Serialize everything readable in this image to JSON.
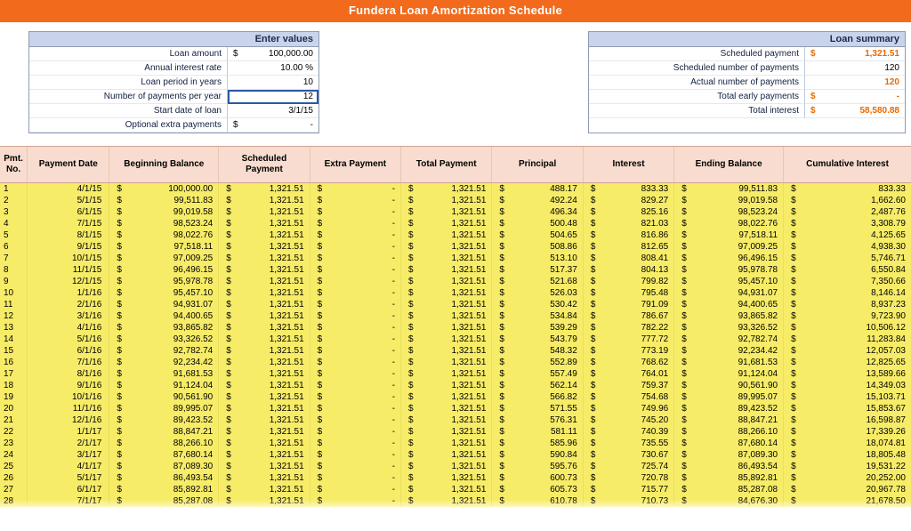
{
  "banner_title": "Fundera Loan Amortization Schedule",
  "enter_values": {
    "panel_title": "Enter values",
    "rows": [
      {
        "label": "Loan amount",
        "value": "100,000.00",
        "currency": true,
        "focus": false
      },
      {
        "label": "Annual interest rate",
        "value": "10.00  %",
        "currency": false,
        "focus": false
      },
      {
        "label": "Loan period in years",
        "value": "10",
        "currency": false,
        "focus": false
      },
      {
        "label": "Number of payments per year",
        "value": "12",
        "currency": false,
        "focus": true
      },
      {
        "label": "Start date of loan",
        "value": "3/1/15",
        "currency": false,
        "focus": false
      },
      {
        "label": "Optional extra payments",
        "value": "-",
        "currency": true,
        "focus": false
      }
    ]
  },
  "loan_summary": {
    "panel_title": "Loan summary",
    "rows": [
      {
        "label": "Scheduled payment",
        "value": "1,321.51",
        "currency": true,
        "orange": true
      },
      {
        "label": "Scheduled number of payments",
        "value": "120",
        "currency": false,
        "orange": false
      },
      {
        "label": "Actual number of payments",
        "value": "120",
        "currency": false,
        "orange": true
      },
      {
        "label": "Total early payments",
        "value": "-",
        "currency": true,
        "orange": true
      },
      {
        "label": "Total interest",
        "value": "58,580.88",
        "currency": true,
        "orange": true
      }
    ]
  },
  "schedule": {
    "columns": [
      "Pmt. No.",
      "Payment Date",
      "Beginning Balance",
      "Scheduled Payment",
      "Extra Payment",
      "Total Payment",
      "Principal",
      "Interest",
      "Ending Balance",
      "Cumulative Interest"
    ],
    "header_bg": "#f7dccf",
    "row_bg": "#f7ec68",
    "rows": [
      {
        "no": 1,
        "date": "4/1/15",
        "bb": "100,000.00",
        "sp": "1,321.51",
        "ep": "-",
        "tp": "1,321.51",
        "pr": "488.17",
        "int": "833.33",
        "eb": "99,511.83",
        "ci": "833.33"
      },
      {
        "no": 2,
        "date": "5/1/15",
        "bb": "99,511.83",
        "sp": "1,321.51",
        "ep": "-",
        "tp": "1,321.51",
        "pr": "492.24",
        "int": "829.27",
        "eb": "99,019.58",
        "ci": "1,662.60"
      },
      {
        "no": 3,
        "date": "6/1/15",
        "bb": "99,019.58",
        "sp": "1,321.51",
        "ep": "-",
        "tp": "1,321.51",
        "pr": "496.34",
        "int": "825.16",
        "eb": "98,523.24",
        "ci": "2,487.76"
      },
      {
        "no": 4,
        "date": "7/1/15",
        "bb": "98,523.24",
        "sp": "1,321.51",
        "ep": "-",
        "tp": "1,321.51",
        "pr": "500.48",
        "int": "821.03",
        "eb": "98,022.76",
        "ci": "3,308.79"
      },
      {
        "no": 5,
        "date": "8/1/15",
        "bb": "98,022.76",
        "sp": "1,321.51",
        "ep": "-",
        "tp": "1,321.51",
        "pr": "504.65",
        "int": "816.86",
        "eb": "97,518.11",
        "ci": "4,125.65"
      },
      {
        "no": 6,
        "date": "9/1/15",
        "bb": "97,518.11",
        "sp": "1,321.51",
        "ep": "-",
        "tp": "1,321.51",
        "pr": "508.86",
        "int": "812.65",
        "eb": "97,009.25",
        "ci": "4,938.30"
      },
      {
        "no": 7,
        "date": "10/1/15",
        "bb": "97,009.25",
        "sp": "1,321.51",
        "ep": "-",
        "tp": "1,321.51",
        "pr": "513.10",
        "int": "808.41",
        "eb": "96,496.15",
        "ci": "5,746.71"
      },
      {
        "no": 8,
        "date": "11/1/15",
        "bb": "96,496.15",
        "sp": "1,321.51",
        "ep": "-",
        "tp": "1,321.51",
        "pr": "517.37",
        "int": "804.13",
        "eb": "95,978.78",
        "ci": "6,550.84"
      },
      {
        "no": 9,
        "date": "12/1/15",
        "bb": "95,978.78",
        "sp": "1,321.51",
        "ep": "-",
        "tp": "1,321.51",
        "pr": "521.68",
        "int": "799.82",
        "eb": "95,457.10",
        "ci": "7,350.66"
      },
      {
        "no": 10,
        "date": "1/1/16",
        "bb": "95,457.10",
        "sp": "1,321.51",
        "ep": "-",
        "tp": "1,321.51",
        "pr": "526.03",
        "int": "795.48",
        "eb": "94,931.07",
        "ci": "8,146.14"
      },
      {
        "no": 11,
        "date": "2/1/16",
        "bb": "94,931.07",
        "sp": "1,321.51",
        "ep": "-",
        "tp": "1,321.51",
        "pr": "530.42",
        "int": "791.09",
        "eb": "94,400.65",
        "ci": "8,937.23"
      },
      {
        "no": 12,
        "date": "3/1/16",
        "bb": "94,400.65",
        "sp": "1,321.51",
        "ep": "-",
        "tp": "1,321.51",
        "pr": "534.84",
        "int": "786.67",
        "eb": "93,865.82",
        "ci": "9,723.90"
      },
      {
        "no": 13,
        "date": "4/1/16",
        "bb": "93,865.82",
        "sp": "1,321.51",
        "ep": "-",
        "tp": "1,321.51",
        "pr": "539.29",
        "int": "782.22",
        "eb": "93,326.52",
        "ci": "10,506.12"
      },
      {
        "no": 14,
        "date": "5/1/16",
        "bb": "93,326.52",
        "sp": "1,321.51",
        "ep": "-",
        "tp": "1,321.51",
        "pr": "543.79",
        "int": "777.72",
        "eb": "92,782.74",
        "ci": "11,283.84"
      },
      {
        "no": 15,
        "date": "6/1/16",
        "bb": "92,782.74",
        "sp": "1,321.51",
        "ep": "-",
        "tp": "1,321.51",
        "pr": "548.32",
        "int": "773.19",
        "eb": "92,234.42",
        "ci": "12,057.03"
      },
      {
        "no": 16,
        "date": "7/1/16",
        "bb": "92,234.42",
        "sp": "1,321.51",
        "ep": "-",
        "tp": "1,321.51",
        "pr": "552.89",
        "int": "768.62",
        "eb": "91,681.53",
        "ci": "12,825.65"
      },
      {
        "no": 17,
        "date": "8/1/16",
        "bb": "91,681.53",
        "sp": "1,321.51",
        "ep": "-",
        "tp": "1,321.51",
        "pr": "557.49",
        "int": "764.01",
        "eb": "91,124.04",
        "ci": "13,589.66"
      },
      {
        "no": 18,
        "date": "9/1/16",
        "bb": "91,124.04",
        "sp": "1,321.51",
        "ep": "-",
        "tp": "1,321.51",
        "pr": "562.14",
        "int": "759.37",
        "eb": "90,561.90",
        "ci": "14,349.03"
      },
      {
        "no": 19,
        "date": "10/1/16",
        "bb": "90,561.90",
        "sp": "1,321.51",
        "ep": "-",
        "tp": "1,321.51",
        "pr": "566.82",
        "int": "754.68",
        "eb": "89,995.07",
        "ci": "15,103.71"
      },
      {
        "no": 20,
        "date": "11/1/16",
        "bb": "89,995.07",
        "sp": "1,321.51",
        "ep": "-",
        "tp": "1,321.51",
        "pr": "571.55",
        "int": "749.96",
        "eb": "89,423.52",
        "ci": "15,853.67"
      },
      {
        "no": 21,
        "date": "12/1/16",
        "bb": "89,423.52",
        "sp": "1,321.51",
        "ep": "-",
        "tp": "1,321.51",
        "pr": "576.31",
        "int": "745.20",
        "eb": "88,847.21",
        "ci": "16,598.87"
      },
      {
        "no": 22,
        "date": "1/1/17",
        "bb": "88,847.21",
        "sp": "1,321.51",
        "ep": "-",
        "tp": "1,321.51",
        "pr": "581.11",
        "int": "740.39",
        "eb": "88,266.10",
        "ci": "17,339.26"
      },
      {
        "no": 23,
        "date": "2/1/17",
        "bb": "88,266.10",
        "sp": "1,321.51",
        "ep": "-",
        "tp": "1,321.51",
        "pr": "585.96",
        "int": "735.55",
        "eb": "87,680.14",
        "ci": "18,074.81"
      },
      {
        "no": 24,
        "date": "3/1/17",
        "bb": "87,680.14",
        "sp": "1,321.51",
        "ep": "-",
        "tp": "1,321.51",
        "pr": "590.84",
        "int": "730.67",
        "eb": "87,089.30",
        "ci": "18,805.48"
      },
      {
        "no": 25,
        "date": "4/1/17",
        "bb": "87,089.30",
        "sp": "1,321.51",
        "ep": "-",
        "tp": "1,321.51",
        "pr": "595.76",
        "int": "725.74",
        "eb": "86,493.54",
        "ci": "19,531.22"
      },
      {
        "no": 26,
        "date": "5/1/17",
        "bb": "86,493.54",
        "sp": "1,321.51",
        "ep": "-",
        "tp": "1,321.51",
        "pr": "600.73",
        "int": "720.78",
        "eb": "85,892.81",
        "ci": "20,252.00"
      },
      {
        "no": 27,
        "date": "6/1/17",
        "bb": "85,892.81",
        "sp": "1,321.51",
        "ep": "-",
        "tp": "1,321.51",
        "pr": "605.73",
        "int": "715.77",
        "eb": "85,287.08",
        "ci": "20,967.78"
      },
      {
        "no": 28,
        "date": "7/1/17",
        "bb": "85,287.08",
        "sp": "1,321.51",
        "ep": "-",
        "tp": "1,321.51",
        "pr": "610.78",
        "int": "710.73",
        "eb": "84,676.30",
        "ci": "21,678.50"
      }
    ]
  }
}
